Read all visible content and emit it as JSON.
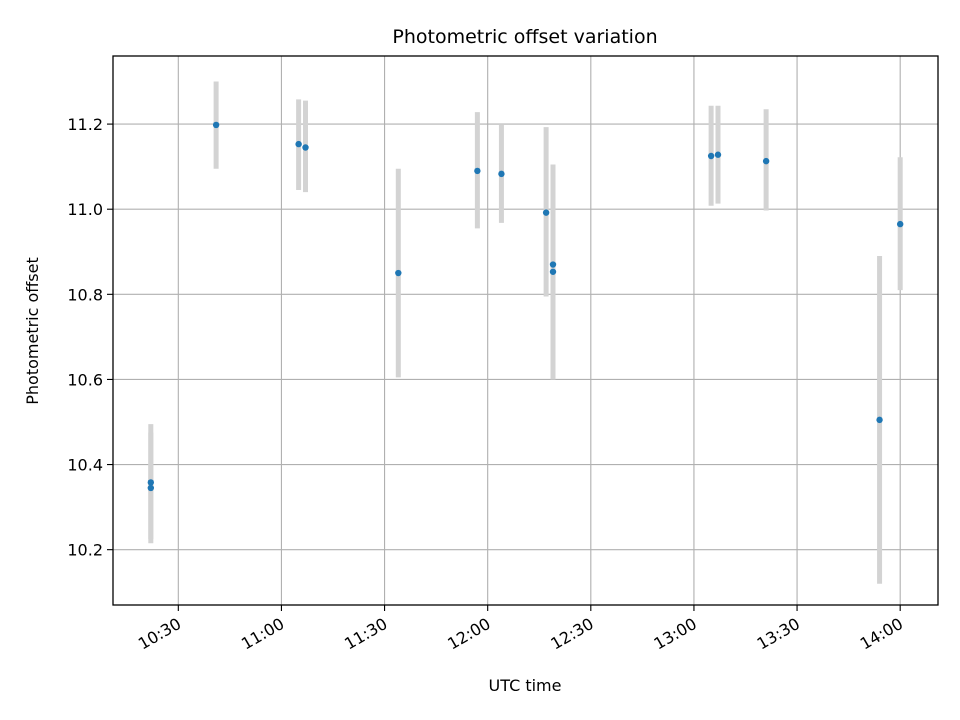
{
  "chart_data": {
    "type": "scatter",
    "title": "Photometric offset variation",
    "xlabel": "UTC time",
    "ylabel": "Photometric offset",
    "x_ticks": [
      "10:30",
      "11:00",
      "11:30",
      "12:00",
      "12:30",
      "13:00",
      "13:30",
      "14:00"
    ],
    "y_ticks": [
      "10.2",
      "10.4",
      "10.6",
      "10.8",
      "11.0",
      "11.2"
    ],
    "xlim": [
      "10:11",
      "14:11"
    ],
    "ylim": [
      10.07,
      11.36
    ],
    "grid": true,
    "colors": {
      "point": "#1f77b4",
      "errorbar": "#d3d3d3",
      "grid": "#b0b0b0"
    },
    "series": [
      {
        "points": [
          {
            "x": "10:22",
            "y": 10.345,
            "err_low": 10.215,
            "err_high": 10.475
          },
          {
            "x": "10:22",
            "y": 10.358,
            "err_low": 10.225,
            "err_high": 10.495
          },
          {
            "x": "10:41",
            "y": 11.198,
            "err_low": 11.095,
            "err_high": 11.3
          },
          {
            "x": "11:05",
            "y": 11.153,
            "err_low": 11.045,
            "err_high": 11.258
          },
          {
            "x": "11:07",
            "y": 11.145,
            "err_low": 11.04,
            "err_high": 11.255
          },
          {
            "x": "11:34",
            "y": 10.85,
            "err_low": 10.605,
            "err_high": 11.095
          },
          {
            "x": "11:57",
            "y": 11.09,
            "err_low": 10.955,
            "err_high": 11.228
          },
          {
            "x": "12:04",
            "y": 11.083,
            "err_low": 10.968,
            "err_high": 11.198
          },
          {
            "x": "12:17",
            "y": 10.992,
            "err_low": 10.795,
            "err_high": 11.193
          },
          {
            "x": "12:19",
            "y": 10.87,
            "err_low": 10.6,
            "err_high": 11.105
          },
          {
            "x": "12:19",
            "y": 10.853,
            "err_low": 10.6,
            "err_high": 11.105
          },
          {
            "x": "13:05",
            "y": 11.125,
            "err_low": 11.008,
            "err_high": 11.243
          },
          {
            "x": "13:07",
            "y": 11.128,
            "err_low": 11.013,
            "err_high": 11.243
          },
          {
            "x": "13:21",
            "y": 11.113,
            "err_low": 10.997,
            "err_high": 11.235
          },
          {
            "x": "13:54",
            "y": 10.505,
            "err_low": 10.12,
            "err_high": 10.89
          },
          {
            "x": "14:00",
            "y": 10.965,
            "err_low": 10.81,
            "err_high": 11.122
          }
        ]
      }
    ]
  }
}
